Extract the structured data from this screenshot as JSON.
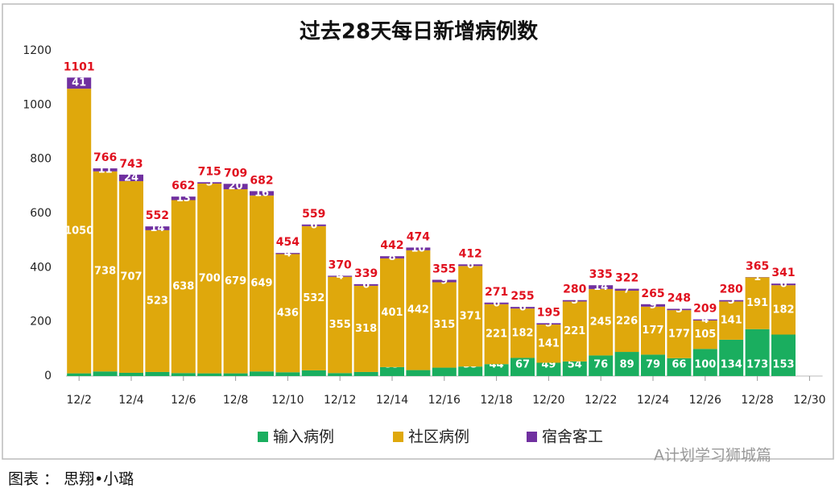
{
  "chart_data": {
    "type": "stacked_bar",
    "title": "过去28天每日新增病例数",
    "categories": [
      "12/2",
      null,
      "12/4",
      null,
      "12/6",
      null,
      "12/8",
      null,
      "12/10",
      null,
      "12/12",
      null,
      "12/14",
      null,
      "12/16",
      null,
      "12/18",
      null,
      "12/20",
      null,
      "12/22",
      null,
      "12/24",
      null,
      "12/26",
      null,
      "12/28",
      null,
      "12/30"
    ],
    "series": [
      {
        "name": "输入病例",
        "color": "#1aae5f",
        "values": [
          10,
          17,
          12,
          15,
          11,
          10,
          10,
          17,
          14,
          21,
          11,
          15,
          33,
          22,
          31,
          35,
          44,
          67,
          49,
          54,
          76,
          89,
          79,
          66,
          100,
          134,
          173,
          153,
          null
        ]
      },
      {
        "name": "社区病例",
        "color": "#dfa80c",
        "values": [
          1050,
          738,
          707,
          523,
          638,
          700,
          679,
          649,
          436,
          532,
          355,
          318,
          401,
          442,
          315,
          371,
          221,
          182,
          141,
          221,
          245,
          226,
          177,
          177,
          105,
          141,
          191,
          182,
          null
        ]
      },
      {
        "name": "宿舍客工",
        "color": "#7030a0",
        "values": [
          41,
          11,
          24,
          14,
          13,
          5,
          20,
          16,
          4,
          6,
          4,
          6,
          8,
          10,
          9,
          6,
          6,
          6,
          5,
          5,
          14,
          7,
          9,
          5,
          4,
          5,
          1,
          6,
          null
        ]
      }
    ],
    "totals": [
      1101,
      766,
      743,
      552,
      662,
      715,
      709,
      682,
      454,
      559,
      370,
      339,
      442,
      474,
      355,
      412,
      271,
      255,
      195,
      280,
      335,
      322,
      265,
      248,
      209,
      280,
      365,
      341,
      null
    ],
    "ylim": [
      0,
      1200
    ],
    "yticks": [
      0,
      200,
      400,
      600,
      800,
      1000,
      1200
    ],
    "grid": false,
    "legend": "bottom",
    "caption": "图表 ： 思翔•小璐",
    "watermark": "A计划学习狮城篇"
  }
}
